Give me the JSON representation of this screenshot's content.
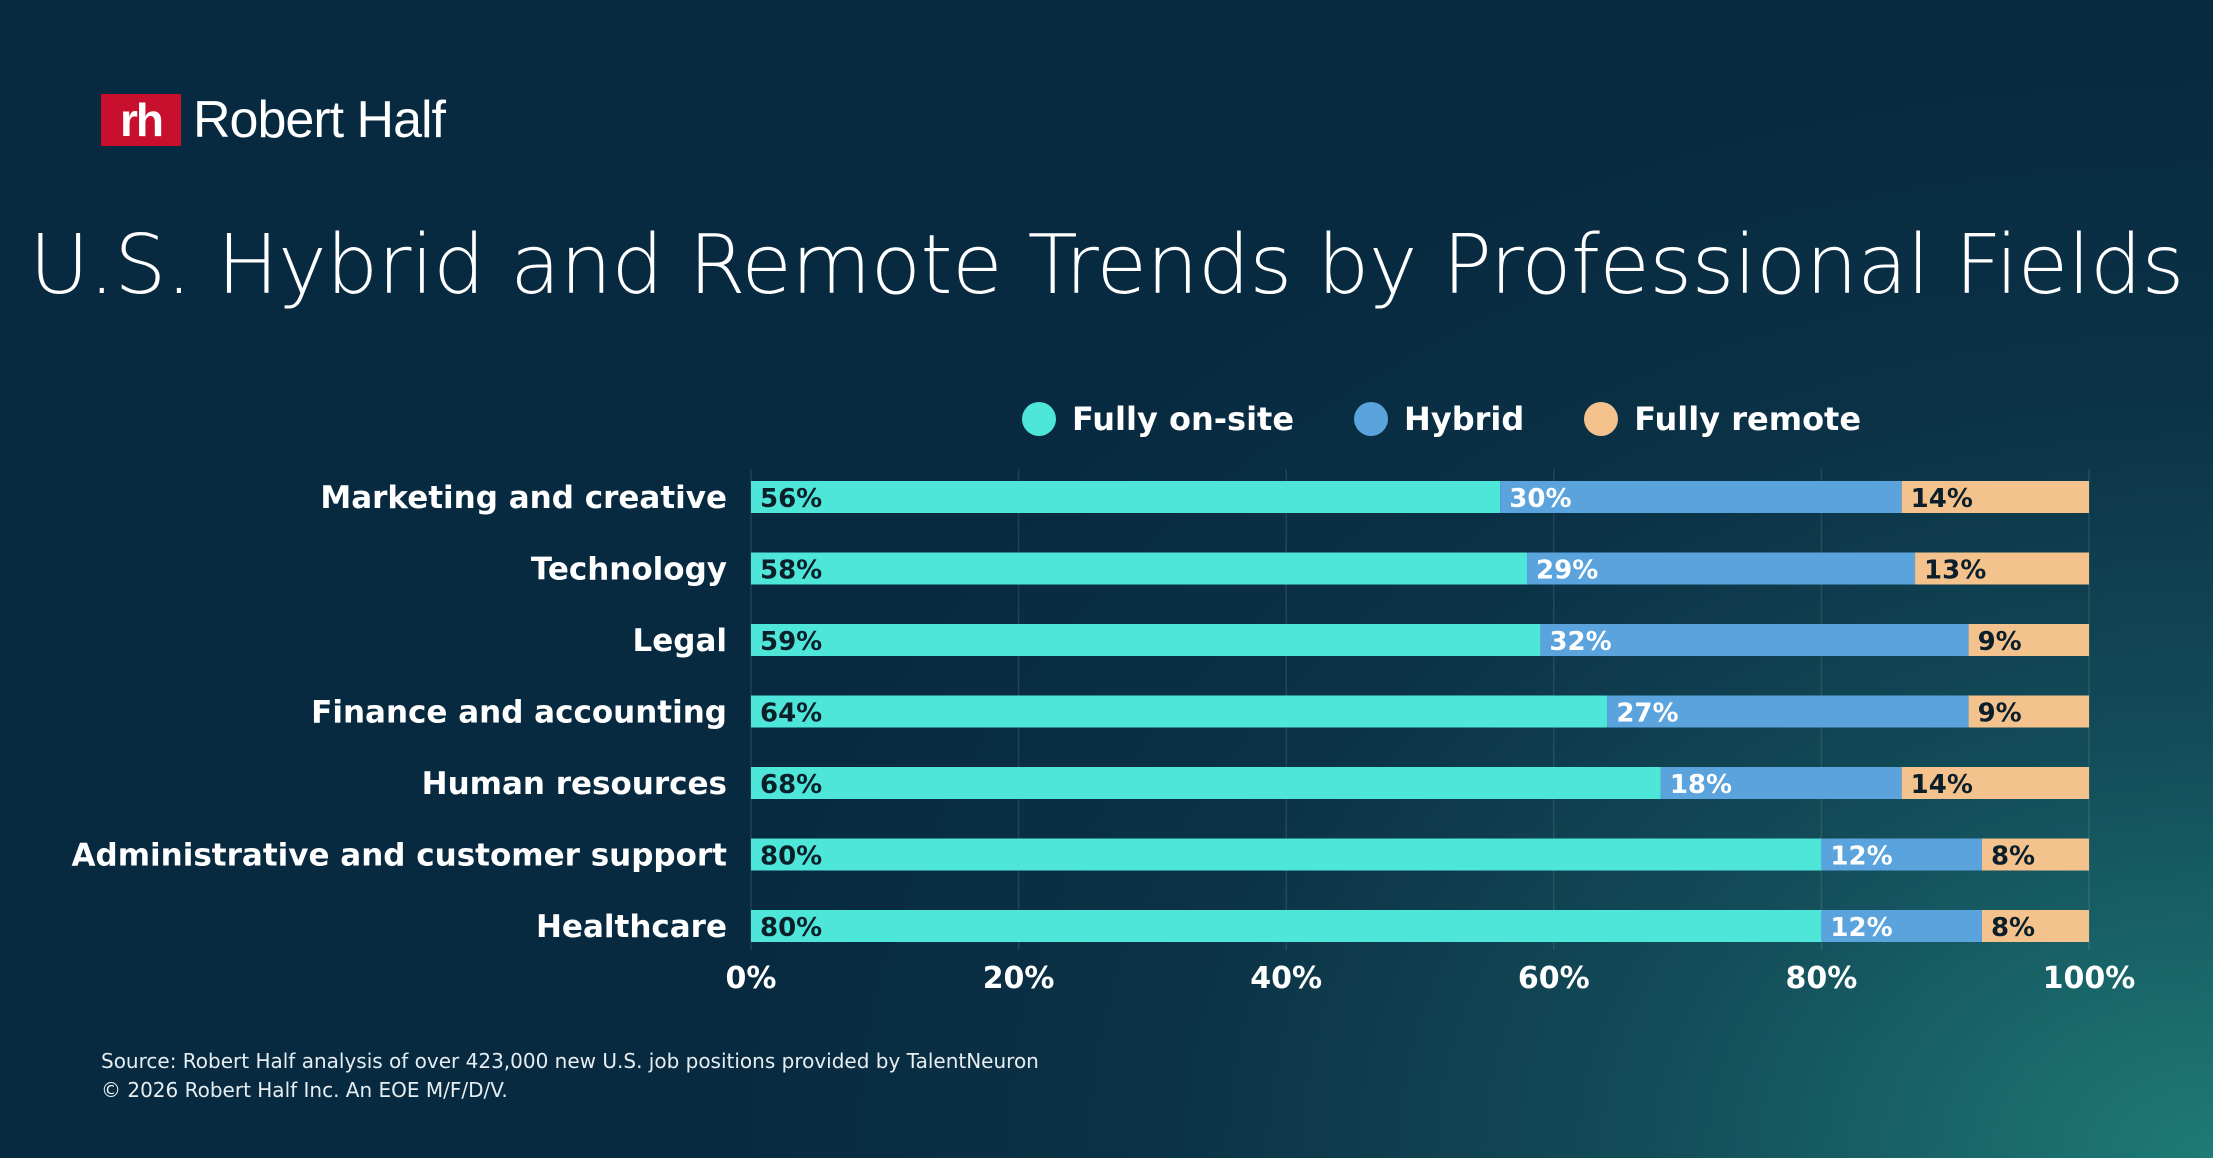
{
  "brand": {
    "mark": "rh",
    "name": "Robert Half",
    "mark_color": "#c8102e"
  },
  "title": "U.S. Hybrid and Remote Trends by Professional Fields",
  "legend": [
    {
      "label": "Fully on-site",
      "color": "#4de6d9"
    },
    {
      "label": "Hybrid",
      "color": "#5ba3dd"
    },
    {
      "label": "Fully remote",
      "color": "#f4c38d"
    }
  ],
  "chart_data": {
    "type": "bar",
    "orientation": "horizontal",
    "stacked": true,
    "title": "U.S. Hybrid and Remote Trends by Professional Fields",
    "categories": [
      "Marketing and creative",
      "Technology",
      "Legal",
      "Finance and accounting",
      "Human resources",
      "Administrative and customer support",
      "Healthcare"
    ],
    "series": [
      {
        "name": "Fully on-site",
        "color": "#4de6d9",
        "values": [
          56,
          58,
          59,
          64,
          68,
          80,
          80
        ],
        "value_labels": [
          "56%",
          "58%",
          "59%",
          "64%",
          "68%",
          "80%",
          "80%"
        ],
        "label_color": "#0b1f2a"
      },
      {
        "name": "Hybrid",
        "color": "#5ba3dd",
        "values": [
          30,
          29,
          32,
          27,
          18,
          12,
          12
        ],
        "value_labels": [
          "30%",
          "29%",
          "32%",
          "27%",
          "18%",
          "12%",
          "12%"
        ],
        "label_color": "#ffffff"
      },
      {
        "name": "Fully remote",
        "color": "#f4c38d",
        "values": [
          14,
          13,
          9,
          9,
          14,
          8,
          8
        ],
        "value_labels": [
          "14%",
          "13%",
          "9%",
          "9%",
          "14%",
          "8%",
          "8%"
        ],
        "label_color": "#0b1f2a"
      }
    ],
    "xlim": [
      0,
      100
    ],
    "x_ticks": [
      0,
      20,
      40,
      60,
      80,
      100
    ],
    "x_tick_labels": [
      "0%",
      "20%",
      "40%",
      "60%",
      "80%",
      "100%"
    ],
    "grid": true,
    "legend_position": "top"
  },
  "footer": {
    "source": "Source: Robert Half analysis of over 423,000 new U.S. job positions provided by TalentNeuron",
    "copyright": "© 2026 Robert Half Inc. An EOE M/F/D/V."
  }
}
